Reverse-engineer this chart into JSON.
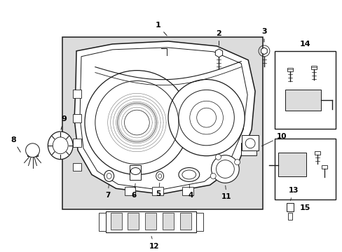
{
  "bg_color": "#ffffff",
  "fig_width": 4.89,
  "fig_height": 3.6,
  "dpi": 100,
  "line_color": "#1a1a1a",
  "text_color": "#000000",
  "label_fontsize": 7.5,
  "box_fill": "#e8e8e8",
  "headlamp_fill": "#dcdcdc",
  "white": "#ffffff"
}
